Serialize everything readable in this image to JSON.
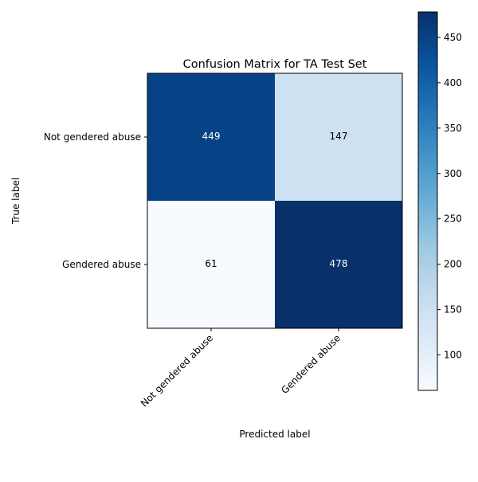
{
  "chart_data": {
    "type": "heatmap",
    "title": "Confusion Matrix for TA Test Set",
    "xlabel": "Predicted label",
    "ylabel": "True label",
    "x_categories": [
      "Not gendered abuse",
      "Gendered abuse"
    ],
    "y_categories": [
      "Not gendered abuse",
      "Gendered abuse"
    ],
    "values": [
      [
        449,
        147
      ],
      [
        61,
        478
      ]
    ],
    "colormap": "Blues",
    "colorbar": {
      "min": 61,
      "max": 478,
      "ticks": [
        100,
        150,
        200,
        250,
        300,
        350,
        400,
        450
      ]
    },
    "grid": false
  }
}
